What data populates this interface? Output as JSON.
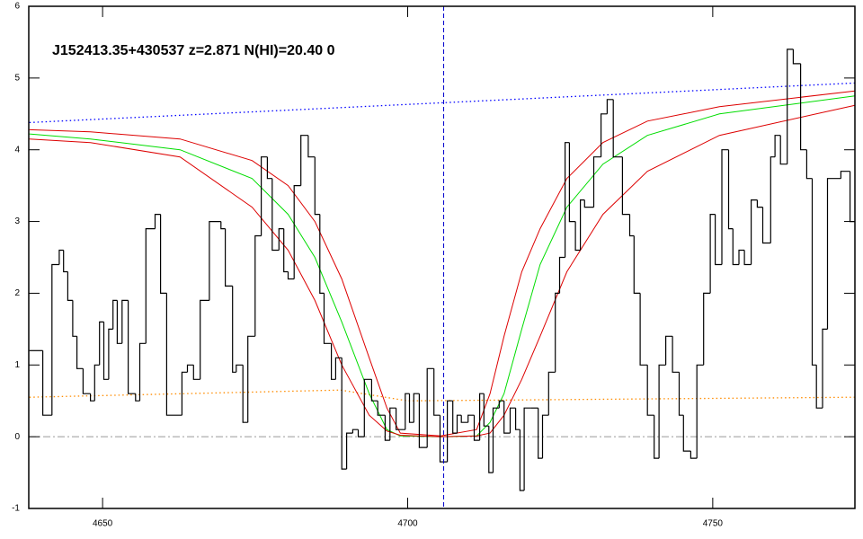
{
  "chart_data": {
    "type": "spectrum",
    "annotation": "J152413.35+430537 z=2.871 N(HI)=20.40 0",
    "xlim": [
      4637.9,
      4773.3
    ],
    "ylim": [
      -1,
      6
    ],
    "xticks": [
      4650,
      4700,
      4750
    ],
    "yticks": [
      -1,
      0,
      1,
      2,
      3,
      4,
      5,
      6
    ],
    "vline": 4705.9,
    "hline": 0,
    "flux": {
      "color": "#000000",
      "x": [
        4638.0,
        4640.2,
        4641.7,
        4642.9,
        4643.6,
        4644.3,
        4645.1,
        4645.8,
        4646.8,
        4648.0,
        4648.7,
        4649.5,
        4650.2,
        4651.0,
        4651.7,
        4652.4,
        4653.2,
        4654.2,
        4655.4,
        4656.1,
        4657.1,
        4658.6,
        4659.5,
        4660.5,
        4663.0,
        4663.9,
        4664.9,
        4666.0,
        4667.5,
        4669.4,
        4670.1,
        4671.3,
        4671.9,
        4673.0,
        4673.8,
        4675.0,
        4676.0,
        4677.0,
        4677.8,
        4678.9,
        4679.7,
        4680.4,
        4681.4,
        4682.5,
        4683.7,
        4684.8,
        4685.6,
        4686.3,
        4687.5,
        4688.2,
        4689.2,
        4690.0,
        4691.0,
        4691.9,
        4692.9,
        4694.1,
        4695.1,
        4696.3,
        4697.1,
        4698.1,
        4699.6,
        4700.3,
        4701.0,
        4701.9,
        4703.2,
        4704.3,
        4705.3,
        4706.5,
        4707.4,
        4708.1,
        4708.8,
        4709.9,
        4710.9,
        4711.8,
        4712.5,
        4713.3,
        4714.0,
        4715.0,
        4715.8,
        4716.8,
        4717.7,
        4718.4,
        4719.1,
        4720.2,
        4721.4,
        4722.1,
        4723.1,
        4724.2,
        4724.9,
        4725.8,
        4726.5,
        4727.5,
        4728.3,
        4729.0,
        4730.5,
        4731.7,
        4732.7,
        4733.7,
        4735.2,
        4736.4,
        4737.1,
        4738.1,
        4739.3,
        4740.4,
        4741.2,
        4742.3,
        4743.4,
        4744.5,
        4745.2,
        4746.4,
        4747.4,
        4748.5,
        4749.6,
        4750.4,
        4751.5,
        4752.6,
        4753.3,
        4754.3,
        4755.2,
        4756.3,
        4757.3,
        4758.2,
        4759.5,
        4760.2,
        4761.1,
        4762.2,
        4763.2,
        4764.4,
        4765.4,
        4766.3,
        4767.0,
        4768.0,
        4768.8,
        4771.0,
        4772.5
      ],
      "values": [
        1.2,
        0.3,
        2.4,
        2.6,
        2.3,
        1.9,
        1.4,
        0.95,
        0.6,
        0.5,
        1.0,
        1.6,
        0.8,
        1.5,
        1.9,
        1.3,
        1.9,
        0.6,
        0.5,
        1.3,
        2.9,
        3.1,
        2.0,
        0.3,
        0.9,
        1.0,
        0.8,
        1.9,
        3.0,
        2.9,
        2.1,
        0.9,
        1.0,
        0.2,
        1.4,
        2.8,
        3.9,
        3.6,
        2.6,
        2.9,
        2.3,
        2.2,
        3.5,
        4.2,
        3.9,
        3.1,
        2.0,
        1.3,
        0.8,
        1.1,
        -0.45,
        0.05,
        0.1,
        0.0,
        0.8,
        0.5,
        0.3,
        -0.05,
        0.4,
        0.1,
        0.6,
        0.2,
        0.6,
        -0.15,
        0.95,
        0.3,
        -0.35,
        0.5,
        0.05,
        0.3,
        0.2,
        0.3,
        -0.05,
        0.6,
        0.15,
        -0.5,
        0.4,
        0.5,
        0.05,
        0.4,
        0.1,
        -0.75,
        0.4,
        0.4,
        -0.3,
        0.3,
        0.9,
        2.0,
        2.5,
        4.1,
        3.0,
        2.6,
        3.3,
        3.2,
        3.9,
        4.5,
        4.7,
        3.9,
        3.1,
        2.8,
        2.0,
        1.0,
        0.3,
        -0.3,
        1.0,
        1.4,
        0.9,
        0.3,
        -0.2,
        -0.3,
        1.0,
        2.0,
        3.1,
        2.4,
        4.0,
        2.9,
        2.4,
        2.6,
        2.4,
        3.3,
        3.2,
        2.7,
        3.9,
        4.2,
        3.8,
        5.4,
        5.2,
        4.0,
        3.6,
        1.0,
        0.4,
        1.5,
        3.6,
        3.7,
        3.0
      ]
    },
    "series": [
      {
        "color": "#0000ff",
        "style": "dotted",
        "x": [
          4638.0,
          4773.3
        ],
        "values": [
          4.38,
          4.93
        ]
      },
      {
        "color": "#ff8c00",
        "style": "dotted",
        "x": [
          4638.0,
          4689.0,
          4700.0,
          4773.3
        ],
        "values": [
          0.55,
          0.65,
          0.5,
          0.55
        ]
      },
      {
        "color": "#dd0000",
        "style": "solid",
        "x": [
          4638.0,
          4648.0,
          4662.7,
          4674.5,
          4680.4,
          4684.8,
          4689.2,
          4693.7,
          4696.6,
          4698.8,
          4705.4,
          4711.3,
          4713.5,
          4715.8,
          4718.7,
          4721.7,
          4726.1,
          4732.0,
          4739.3,
          4751.1,
          4773.3
        ],
        "values": [
          4.28,
          4.25,
          4.15,
          3.85,
          3.5,
          3.0,
          2.2,
          1.1,
          0.4,
          0.05,
          0.01,
          0.1,
          0.6,
          1.4,
          2.3,
          2.9,
          3.6,
          4.1,
          4.4,
          4.6,
          4.82
        ]
      },
      {
        "color": "#00dd00",
        "style": "solid",
        "x": [
          4638.0,
          4648.0,
          4662.7,
          4674.5,
          4680.4,
          4684.8,
          4689.2,
          4693.7,
          4696.6,
          4698.8,
          4705.4,
          4711.3,
          4713.5,
          4715.8,
          4718.7,
          4721.7,
          4726.1,
          4732.0,
          4739.3,
          4751.1,
          4773.3
        ],
        "values": [
          4.22,
          4.15,
          4.0,
          3.6,
          3.1,
          2.5,
          1.6,
          0.6,
          0.1,
          0.01,
          0,
          0.01,
          0.2,
          0.6,
          1.5,
          2.4,
          3.2,
          3.8,
          4.2,
          4.5,
          4.75
        ]
      },
      {
        "color": "#dd0000",
        "style": "solid",
        "x": [
          4638.0,
          4648.0,
          4662.7,
          4674.5,
          4680.4,
          4684.8,
          4689.2,
          4693.7,
          4696.6,
          4698.8,
          4705.4,
          4711.3,
          4713.5,
          4715.8,
          4718.7,
          4721.7,
          4726.1,
          4732.0,
          4739.3,
          4751.1,
          4773.3
        ],
        "values": [
          4.15,
          4.1,
          3.9,
          3.2,
          2.6,
          1.9,
          1.0,
          0.3,
          0.08,
          0.02,
          0,
          0.01,
          0.05,
          0.3,
          0.8,
          1.4,
          2.3,
          3.1,
          3.7,
          4.2,
          4.62
        ]
      }
    ]
  }
}
